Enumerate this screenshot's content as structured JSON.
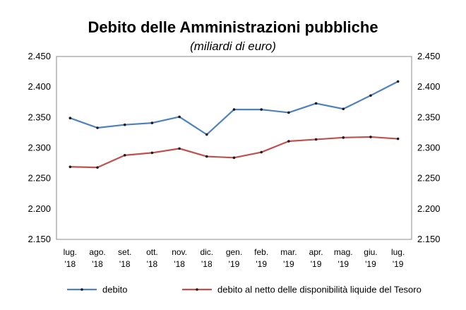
{
  "chart_data": {
    "type": "line",
    "title": "Debito delle Amministrazioni pubbliche",
    "subtitle": "(miliardi di euro)",
    "categories": [
      [
        "lug.",
        "'18"
      ],
      [
        "ago.",
        "'18"
      ],
      [
        "set.",
        "'18"
      ],
      [
        "ott.",
        "'18"
      ],
      [
        "nov.",
        "'18"
      ],
      [
        "dic.",
        "'18"
      ],
      [
        "gen.",
        "'19"
      ],
      [
        "feb.",
        "'19"
      ],
      [
        "mar.",
        "'19"
      ],
      [
        "apr.",
        "'19"
      ],
      [
        "mag.",
        "'19"
      ],
      [
        "giu.",
        "'19"
      ],
      [
        "lug.",
        "'19"
      ]
    ],
    "ylim": [
      2150,
      2450
    ],
    "yticks": [
      2150,
      2200,
      2250,
      2300,
      2350,
      2400,
      2450
    ],
    "ytick_labels": [
      "2.150",
      "2.200",
      "2.250",
      "2.300",
      "2.350",
      "2.400",
      "2.450"
    ],
    "grid": false,
    "legend_position": "bottom",
    "series": [
      {
        "name": "debito",
        "color": "#4f81bd",
        "values": [
          2349,
          2333,
          2338,
          2341,
          2351,
          2322,
          2363,
          2363,
          2358,
          2373,
          2364,
          2386,
          2409
        ]
      },
      {
        "name": "debito al netto delle disponibilità liquide del Tesoro",
        "color": "#c0504d",
        "values": [
          2269,
          2268,
          2288,
          2292,
          2299,
          2286,
          2284,
          2293,
          2311,
          2314,
          2317,
          2318,
          2315
        ]
      }
    ]
  }
}
